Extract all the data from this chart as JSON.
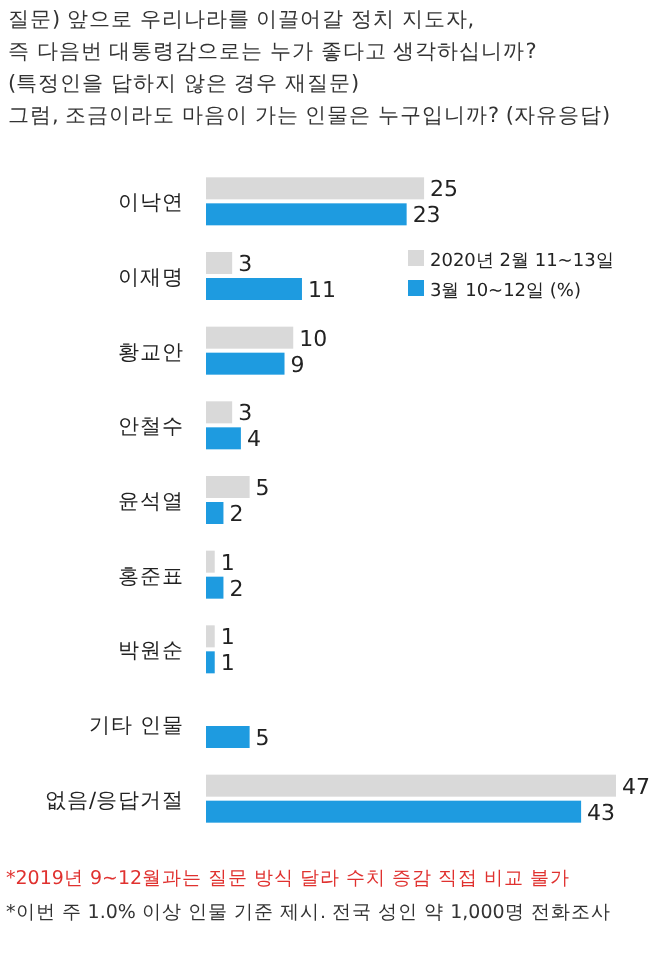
{
  "chart_data": {
    "type": "bar",
    "orientation": "horizontal",
    "title": "질문) 앞으로 우리나라를 이끌어갈 정치 지도자,\n즉 다음번 대통령감으로는 누가 좋다고 생각하십니까?\n(특정인을 답하지 않은 경우 재질문)\n그럼, 조금이라도 마음이 가는 인물은 누구입니까? (자유응답)",
    "categories": [
      "이낙연",
      "이재명",
      "황교안",
      "안철수",
      "윤석열",
      "홍준표",
      "박원순",
      "기타 인물",
      "없음/응답거절"
    ],
    "series": [
      {
        "name": "2020년 2월 11~13일",
        "color": "#d9d9d9",
        "values": [
          25,
          3,
          10,
          3,
          5,
          1,
          1,
          null,
          47
        ]
      },
      {
        "name": "3월 10~12일 (%)",
        "color": "#1e9be0",
        "values": [
          23,
          11,
          9,
          4,
          2,
          2,
          1,
          5,
          43
        ]
      }
    ],
    "data_labels": true,
    "legend": "top right",
    "annotations": [
      "*2019년 9~12월과는 질문 방식 달라 수치 증감 직접 비교 불가",
      "*이번 주 1.0% 이상 인물 기준 제시. 전국 성인 약 1,000명 전화조사"
    ]
  }
}
